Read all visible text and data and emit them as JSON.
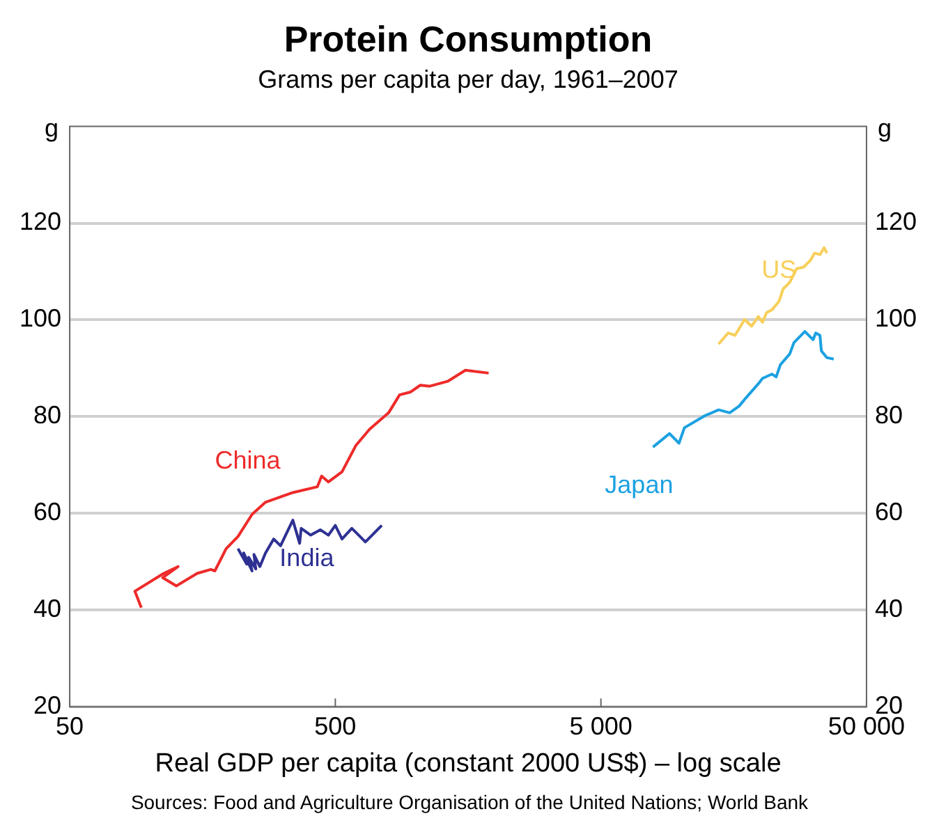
{
  "chart_data": {
    "type": "line",
    "title": "Protein Consumption",
    "subtitle": "Grams per capita per day, 1961–2007",
    "xlabel": "Real GDP per capita (constant 2000 US$) – log scale",
    "ylabel": "g",
    "y2label": "g",
    "annotations": [
      "Sources: Food and Agriculture Organisation of the United Nations; World Bank"
    ],
    "log": "x",
    "grid": "y",
    "legend": false,
    "marker": "none",
    "line_style": "solid",
    "xlim": [
      50,
      50000
    ],
    "xticks": [
      50,
      500,
      {
        "value": 5000,
        "label": "5 000"
      },
      {
        "value": 50000,
        "label": "50 000"
      }
    ],
    "ylim": [
      20,
      140
    ],
    "yticks": [
      20,
      40,
      60,
      80,
      100,
      120
    ],
    "y2lim": [
      20,
      140
    ],
    "y2ticks": [
      20,
      40,
      60,
      80,
      100,
      120
    ],
    "series": [
      {
        "name": "China",
        "color": "#ee2a2a",
        "x": [
          93,
          88,
          113,
          128,
          112,
          126,
          151,
          170,
          176,
          194,
          215,
          243,
          273,
          346,
          428,
          444,
          471,
          530,
          597,
          673,
          794,
          873,
          961,
          1045,
          1135,
          1324,
          1545,
          1889
        ],
        "values": [
          40.5,
          43.9,
          47.6,
          49,
          46.7,
          45,
          47.6,
          48.4,
          48.1,
          52.7,
          55.2,
          59.8,
          62.3,
          64.3,
          65.5,
          67.7,
          66.5,
          68.6,
          74,
          77.4,
          80.8,
          84.5,
          85.1,
          86.5,
          86.3,
          87.3,
          89.6,
          89
        ]
      },
      {
        "name": "India",
        "color": "#2e3192",
        "x": [
          215,
          232,
          226,
          243,
          236,
          251,
          247,
          260,
          273,
          293,
          311,
          346,
          367,
          372,
          404,
          439,
          471,
          500,
          530,
          577,
          649,
          748
        ],
        "values": [
          52.7,
          49.5,
          51.8,
          48.1,
          50.9,
          48.5,
          51.5,
          49,
          51.8,
          54.7,
          53.3,
          58.6,
          53.8,
          56.9,
          55.5,
          56.6,
          55.5,
          57.5,
          54.7,
          56.9,
          54.1,
          57.5
        ]
      },
      {
        "name": "Japan",
        "color": "#1ba1e2",
        "x": [
          7852,
          9060,
          9840,
          10310,
          12320,
          13870,
          15270,
          16590,
          17590,
          19580,
          20290,
          22040,
          22850,
          23680,
          25720,
          26650,
          29300,
          31460,
          32200,
          33400,
          33800,
          35460,
          37610
        ],
        "values": [
          73.7,
          76.5,
          74.5,
          77.7,
          80.2,
          81.4,
          80.8,
          82.2,
          83.9,
          86.8,
          87.9,
          88.8,
          88.2,
          90.7,
          93,
          95.3,
          97.6,
          95.9,
          97.3,
          96.8,
          93.6,
          92.2,
          91.9
        ]
      },
      {
        "name": "US",
        "color": "#f7cf5a",
        "x": [
          13870,
          15060,
          15990,
          17380,
          18450,
          19580,
          20290,
          21030,
          22040,
          23400,
          24270,
          25720,
          27290,
          28950,
          30740,
          31870,
          33400,
          34600,
          35500
        ],
        "values": [
          95,
          97.3,
          96.8,
          100.1,
          98.7,
          100.7,
          99.5,
          101.5,
          102.1,
          103.8,
          106.4,
          107.8,
          110.6,
          110.9,
          112.3,
          113.8,
          113.5,
          114.9,
          113.8
        ]
      }
    ]
  }
}
